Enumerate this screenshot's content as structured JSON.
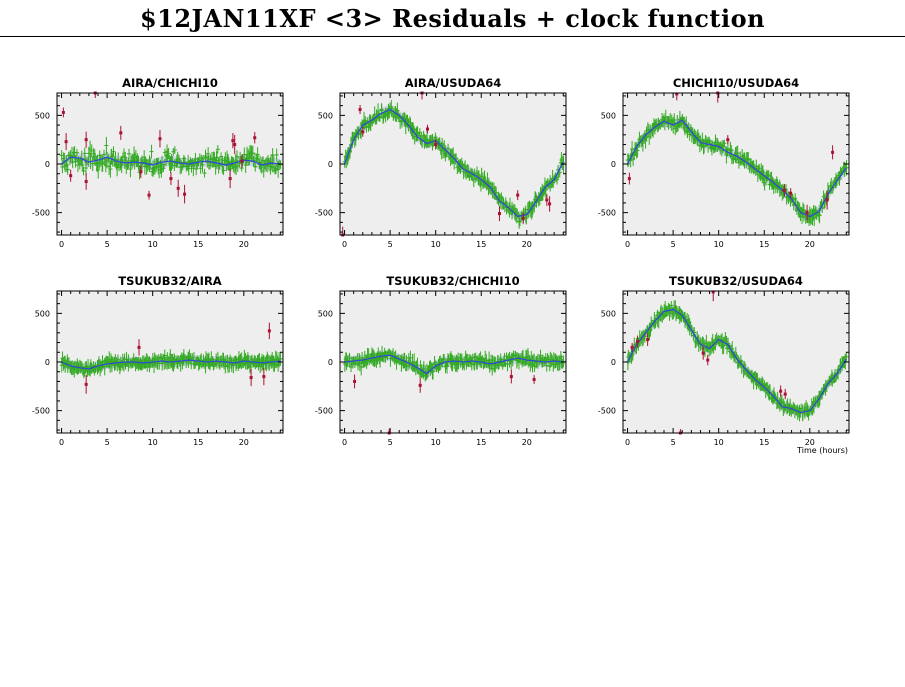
{
  "page_title": "$12JAN11XF <3> Residuals + clock function",
  "x_axis_label": "Time (hours)",
  "colors": {
    "background": "#ffffff",
    "panel_fill": "#eeeeee",
    "residual_good": "#33aa22",
    "residual_flagged": "#aa1133",
    "clock_function": "#3344dd",
    "clock_band": "#c8cce8"
  },
  "chart_data": [
    {
      "type": "scatter",
      "title": "AIRA/CHICHI10",
      "xlim": [
        -0.5,
        24.3
      ],
      "ylim": [
        -730,
        730
      ],
      "xticks": [
        0,
        5,
        10,
        15,
        20
      ],
      "yticks": [
        -500,
        0,
        500
      ],
      "clock_function": [
        [
          0,
          0
        ],
        [
          1,
          70
        ],
        [
          2,
          60
        ],
        [
          3,
          20
        ],
        [
          4,
          40
        ],
        [
          5,
          70
        ],
        [
          6,
          30
        ],
        [
          7,
          10
        ],
        [
          8,
          20
        ],
        [
          9,
          10
        ],
        [
          10,
          -10
        ],
        [
          11,
          20
        ],
        [
          12,
          30
        ],
        [
          13,
          10
        ],
        [
          14,
          0
        ],
        [
          15,
          20
        ],
        [
          16,
          30
        ],
        [
          17,
          10
        ],
        [
          18,
          -10
        ],
        [
          19,
          10
        ],
        [
          20,
          40
        ],
        [
          21,
          30
        ],
        [
          22,
          -10
        ],
        [
          23,
          10
        ],
        [
          24,
          0
        ]
      ],
      "residual_noise": 90,
      "flagged": [
        [
          0.2,
          530
        ],
        [
          0.5,
          230
        ],
        [
          1.0,
          -120
        ],
        [
          2.7,
          -180
        ],
        [
          2.7,
          250
        ],
        [
          3.7,
          730
        ],
        [
          6.5,
          320
        ],
        [
          8.7,
          -80
        ],
        [
          9.6,
          -320
        ],
        [
          10.8,
          260
        ],
        [
          12.0,
          -150
        ],
        [
          12.8,
          -250
        ],
        [
          13.5,
          -310
        ],
        [
          18.5,
          -150
        ],
        [
          18.8,
          240
        ],
        [
          19.0,
          200
        ],
        [
          19.8,
          30
        ],
        [
          21.2,
          270
        ]
      ]
    },
    {
      "type": "scatter",
      "title": "AIRA/USUDA64",
      "xlim": [
        -0.5,
        24.3
      ],
      "ylim": [
        -730,
        730
      ],
      "xticks": [
        0,
        5,
        10,
        15,
        20
      ],
      "yticks": [
        -500,
        0,
        500
      ],
      "clock_function": [
        [
          0,
          0
        ],
        [
          1,
          250
        ],
        [
          2,
          400
        ],
        [
          3,
          450
        ],
        [
          4,
          520
        ],
        [
          5,
          560
        ],
        [
          6,
          500
        ],
        [
          7,
          400
        ],
        [
          8,
          280
        ],
        [
          9,
          210
        ],
        [
          10,
          240
        ],
        [
          11,
          150
        ],
        [
          12,
          60
        ],
        [
          13,
          -50
        ],
        [
          14,
          -100
        ],
        [
          15,
          -160
        ],
        [
          16,
          -240
        ],
        [
          17,
          -380
        ],
        [
          18,
          -450
        ],
        [
          19,
          -540
        ],
        [
          20,
          -520
        ],
        [
          21,
          -390
        ],
        [
          22,
          -240
        ],
        [
          23,
          -160
        ],
        [
          24,
          20
        ]
      ],
      "residual_noise": 50,
      "flagged": [
        [
          -0.2,
          -730
        ],
        [
          1.7,
          560
        ],
        [
          2.0,
          330
        ],
        [
          8.5,
          730
        ],
        [
          9.1,
          360
        ],
        [
          10.0,
          200
        ],
        [
          17.0,
          -510
        ],
        [
          19.0,
          -320
        ],
        [
          19.6,
          -560
        ],
        [
          22.2,
          -370
        ],
        [
          22.5,
          -410
        ]
      ]
    },
    {
      "type": "scatter",
      "title": "CHICHI10/USUDA64",
      "xlim": [
        -0.5,
        24.3
      ],
      "ylim": [
        -730,
        730
      ],
      "xticks": [
        0,
        5,
        10,
        15,
        20
      ],
      "yticks": [
        -500,
        0,
        500
      ],
      "clock_function": [
        [
          0,
          0
        ],
        [
          1,
          180
        ],
        [
          2,
          300
        ],
        [
          3,
          380
        ],
        [
          4,
          440
        ],
        [
          5,
          400
        ],
        [
          6,
          450
        ],
        [
          7,
          330
        ],
        [
          8,
          220
        ],
        [
          9,
          200
        ],
        [
          10,
          180
        ],
        [
          11,
          120
        ],
        [
          12,
          80
        ],
        [
          13,
          20
        ],
        [
          14,
          -50
        ],
        [
          15,
          -120
        ],
        [
          16,
          -190
        ],
        [
          17,
          -270
        ],
        [
          18,
          -360
        ],
        [
          19,
          -500
        ],
        [
          20,
          -540
        ],
        [
          21,
          -490
        ],
        [
          22,
          -310
        ],
        [
          23,
          -170
        ],
        [
          24,
          -40
        ]
      ],
      "residual_noise": 50,
      "flagged": [
        [
          0.2,
          -150
        ],
        [
          5.4,
          720
        ],
        [
          9.9,
          730
        ],
        [
          11.0,
          250
        ],
        [
          17.2,
          -270
        ],
        [
          17.9,
          -300
        ],
        [
          19.7,
          -500
        ],
        [
          21.9,
          -370
        ],
        [
          22.5,
          120
        ]
      ]
    },
    {
      "type": "scatter",
      "title": "TSUKUB32/AIRA",
      "xlim": [
        -0.5,
        24.3
      ],
      "ylim": [
        -730,
        730
      ],
      "xticks": [
        0,
        5,
        10,
        15,
        20
      ],
      "yticks": [
        -500,
        0,
        500
      ],
      "clock_function": [
        [
          0,
          0
        ],
        [
          1,
          -40
        ],
        [
          2,
          -60
        ],
        [
          3,
          -70
        ],
        [
          4,
          -40
        ],
        [
          5,
          -20
        ],
        [
          6,
          -10
        ],
        [
          7,
          0
        ],
        [
          8,
          0
        ],
        [
          9,
          -10
        ],
        [
          10,
          0
        ],
        [
          11,
          10
        ],
        [
          12,
          0
        ],
        [
          13,
          10
        ],
        [
          14,
          20
        ],
        [
          15,
          10
        ],
        [
          16,
          0
        ],
        [
          17,
          10
        ],
        [
          18,
          0
        ],
        [
          19,
          -10
        ],
        [
          20,
          10
        ],
        [
          21,
          0
        ],
        [
          22,
          -10
        ],
        [
          23,
          0
        ],
        [
          24,
          10
        ]
      ],
      "residual_noise": 40,
      "flagged": [
        [
          2.7,
          -230
        ],
        [
          8.5,
          150
        ],
        [
          20.8,
          -160
        ],
        [
          22.2,
          -150
        ],
        [
          22.8,
          320
        ]
      ]
    },
    {
      "type": "scatter",
      "title": "TSUKUB32/CHICHI10",
      "xlim": [
        -0.5,
        24.3
      ],
      "ylim": [
        -730,
        730
      ],
      "xticks": [
        0,
        5,
        10,
        15,
        20
      ],
      "yticks": [
        -500,
        0,
        500
      ],
      "clock_function": [
        [
          0,
          0
        ],
        [
          1,
          10
        ],
        [
          2,
          20
        ],
        [
          3,
          40
        ],
        [
          4,
          60
        ],
        [
          5,
          70
        ],
        [
          6,
          30
        ],
        [
          7,
          -10
        ],
        [
          8,
          -60
        ],
        [
          9,
          -120
        ],
        [
          10,
          -40
        ],
        [
          11,
          0
        ],
        [
          12,
          10
        ],
        [
          13,
          0
        ],
        [
          14,
          10
        ],
        [
          15,
          0
        ],
        [
          16,
          -20
        ],
        [
          17,
          0
        ],
        [
          18,
          20
        ],
        [
          19,
          40
        ],
        [
          20,
          20
        ],
        [
          21,
          10
        ],
        [
          22,
          0
        ],
        [
          23,
          10
        ],
        [
          24,
          0
        ]
      ],
      "residual_noise": 45,
      "flagged": [
        [
          1.1,
          -200
        ],
        [
          4.9,
          -730
        ],
        [
          8.3,
          -240
        ],
        [
          18.3,
          -150
        ],
        [
          20.8,
          -180
        ]
      ]
    },
    {
      "type": "scatter",
      "title": "TSUKUB32/USUDA64",
      "xlim": [
        -0.5,
        24.3
      ],
      "ylim": [
        -730,
        730
      ],
      "xticks": [
        0,
        5,
        10,
        15,
        20
      ],
      "yticks": [
        -500,
        0,
        500
      ],
      "clock_function": [
        [
          0,
          0
        ],
        [
          1,
          180
        ],
        [
          2,
          300
        ],
        [
          3,
          420
        ],
        [
          4,
          520
        ],
        [
          5,
          540
        ],
        [
          6,
          480
        ],
        [
          7,
          330
        ],
        [
          8,
          180
        ],
        [
          9,
          140
        ],
        [
          10,
          230
        ],
        [
          11,
          180
        ],
        [
          12,
          30
        ],
        [
          13,
          -80
        ],
        [
          14,
          -180
        ],
        [
          15,
          -260
        ],
        [
          16,
          -350
        ],
        [
          17,
          -460
        ],
        [
          18,
          -480
        ],
        [
          19,
          -520
        ],
        [
          20,
          -500
        ],
        [
          21,
          -380
        ],
        [
          22,
          -220
        ],
        [
          23,
          -120
        ],
        [
          24,
          30
        ]
      ],
      "residual_noise": 35,
      "flagged": [
        [
          0.5,
          150
        ],
        [
          1.1,
          210
        ],
        [
          2.2,
          230
        ],
        [
          5.8,
          -740
        ],
        [
          8.3,
          90
        ],
        [
          8.8,
          20
        ],
        [
          9.4,
          720
        ],
        [
          16.8,
          -300
        ],
        [
          17.3,
          -330
        ]
      ]
    }
  ]
}
